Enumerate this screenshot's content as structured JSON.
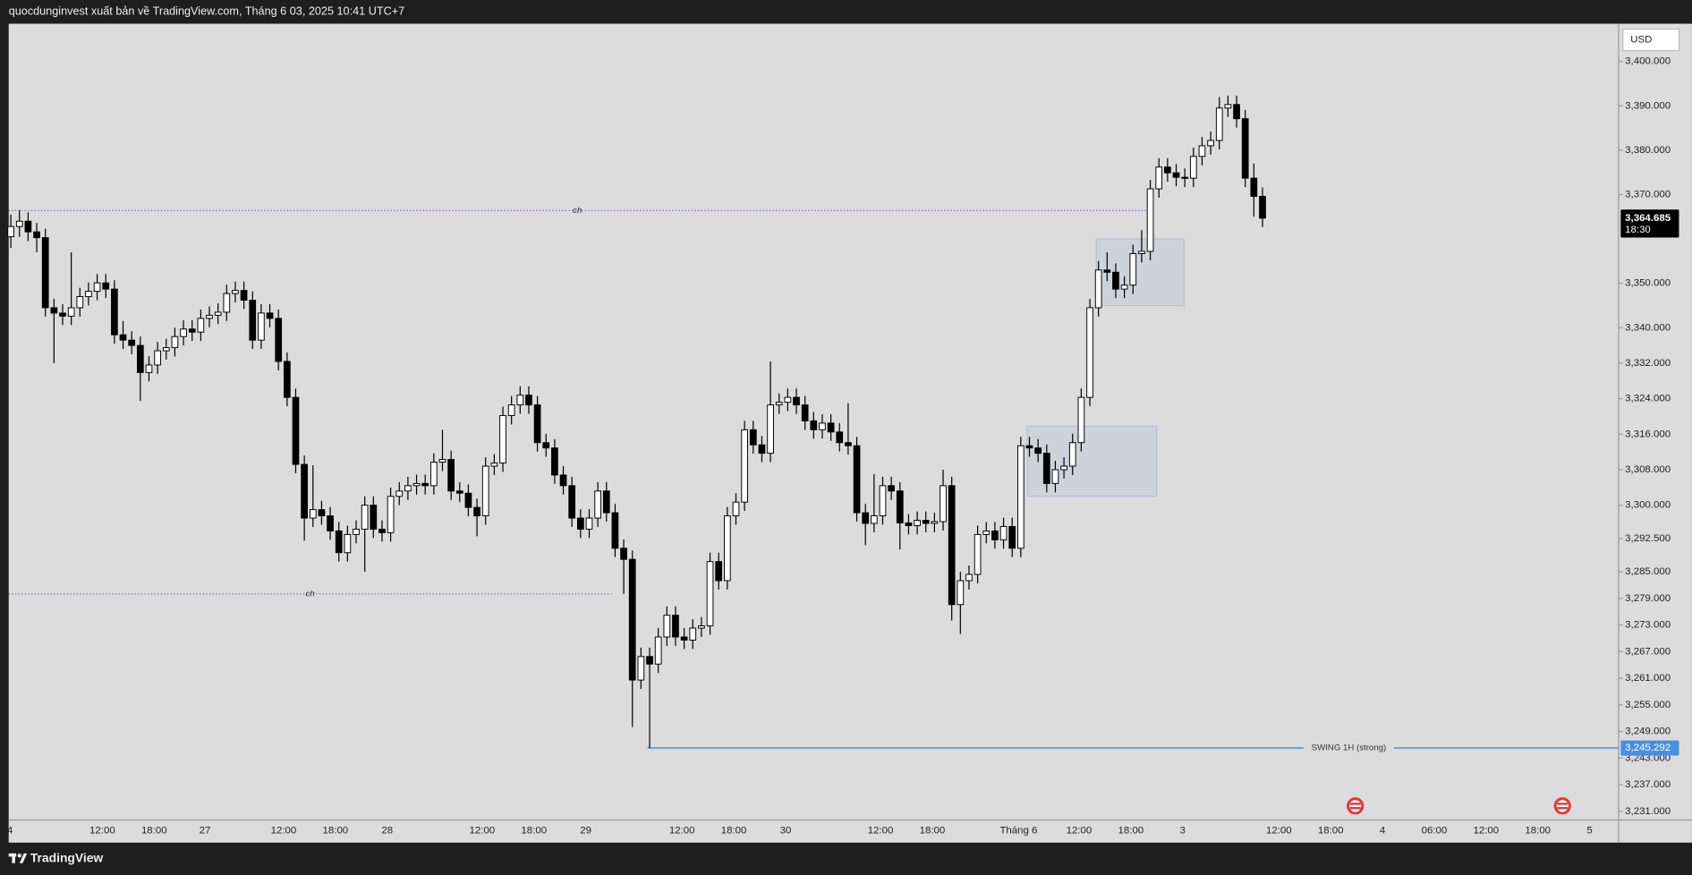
{
  "header": {
    "title": "quocdunginvest xuất bản về TradingView.com, Tháng 6 03, 2025 10:41 UTC+7"
  },
  "footer": {
    "brand": "TradingView"
  },
  "chart_data": {
    "type": "candlestick",
    "currency": "USD",
    "colors": {
      "up": "#ffffff",
      "down": "#000000",
      "outline": "#000000"
    },
    "open": [
      3360.5,
      3362.8,
      3364,
      3361.6,
      3360.3,
      3344.5,
      3343.3,
      3342.6,
      3344.5,
      3347,
      3348.2,
      3350.1,
      3348.7,
      3338.4,
      3337.2,
      3336,
      3329.9,
      3331.6,
      3334.8,
      3335.5,
      3338,
      3339.7,
      3339,
      3342.1,
      3342.8,
      3343.5,
      3347.7,
      3348.4,
      3346.2,
      3337.2,
      3343.3,
      3342.1,
      3332.4,
      3324.3,
      3309.2,
      3297.1,
      3299,
      3297.6,
      3294.2,
      3289.3,
      3293.4,
      3294.6,
      3300,
      3294.6,
      3293.8,
      3302,
      3303.2,
      3304.4,
      3304.9,
      3304.4,
      3309.7,
      3310.3,
      3303.2,
      3302.7,
      3299.5,
      3297.6,
      3308.8,
      3309.5,
      3320.2,
      3322.6,
      3324.8,
      3322.6,
      3314.1,
      3312.9,
      3306.8,
      3304.4,
      3297.1,
      3294.6,
      3297.1,
      3303.2,
      3298.3,
      3290.3,
      3287.8,
      3260.6,
      3265.9,
      3264.2,
      3270.3,
      3275.2,
      3270.3,
      3269.6,
      3272.3,
      3272.8,
      3287.3,
      3283,
      3297.6,
      3300.7,
      3317,
      3313.6,
      3311.7,
      3322.6,
      3323.2,
      3324.3,
      3322.6,
      3319,
      3317,
      3318.5,
      3316.5,
      3314.1,
      3313.4,
      3298.3,
      3295.9,
      3297.6,
      3304.4,
      3303.2,
      3296,
      3295.4,
      3296.6,
      3295.9,
      3296.3,
      3304.4,
      3277.6,
      3283,
      3284.4,
      3293.4,
      3294.2,
      3292.2,
      3295.2,
      3290.3,
      3313.4,
      3312.9,
      3311.7,
      3304.9,
      3308,
      3308.8,
      3314.1,
      3324.3,
      3344.5,
      3353,
      3352.5,
      3348.7,
      3349.6,
      3356.7,
      3357.2,
      3371.3,
      3376.2,
      3374.9,
      3373.9,
      3373.7,
      3378.6,
      3381,
      3382.2,
      3389.5,
      3390.3,
      3387.1,
      3373.7,
      3369.6
    ],
    "high": [
      3365.5,
      3366.5,
      3366,
      3363.6,
      3362.3,
      3346.5,
      3345.3,
      3357,
      3349,
      3350.2,
      3352.1,
      3352.1,
      3350.7,
      3341.5,
      3339.2,
      3338,
      3333.6,
      3336.8,
      3337.5,
      3340,
      3341.7,
      3341.7,
      3344.1,
      3344.8,
      3345.5,
      3349.7,
      3350.4,
      3350.4,
      3348.2,
      3345.3,
      3345.3,
      3344.1,
      3334.4,
      3326.3,
      3311.2,
      3309,
      3301,
      3299.6,
      3296.2,
      3295.4,
      3296.6,
      3302,
      3302,
      3296.6,
      3304,
      3305.2,
      3306.4,
      3306.9,
      3306.9,
      3311.7,
      3317,
      3312.3,
      3305.2,
      3304.7,
      3301.5,
      3310.8,
      3311.5,
      3322.2,
      3324.6,
      3326.8,
      3326.8,
      3324.6,
      3316.1,
      3314.9,
      3308.8,
      3306.4,
      3299.1,
      3299.1,
      3305.2,
      3305.2,
      3300.3,
      3292.3,
      3289.8,
      3267.9,
      3267.9,
      3272.3,
      3277.2,
      3277.2,
      3272.3,
      3274.3,
      3274.8,
      3289.3,
      3289.3,
      3299.6,
      3302.7,
      3319,
      3319,
      3315.6,
      3332.4,
      3325.2,
      3326.3,
      3326.3,
      3324.6,
      3321,
      3320.5,
      3320.5,
      3318.5,
      3323,
      3315.4,
      3300.3,
      3307,
      3306.4,
      3306.4,
      3305.2,
      3298,
      3298.6,
      3298.6,
      3298.3,
      3308,
      3306.4,
      3285,
      3286.4,
      3295.4,
      3296.2,
      3296.2,
      3297.2,
      3297.2,
      3315.4,
      3315.4,
      3314.9,
      3313.7,
      3310,
      3310.8,
      3316.1,
      3326.3,
      3346.5,
      3355,
      3357,
      3354.5,
      3351.6,
      3358.7,
      3362,
      3373.3,
      3378.2,
      3378.2,
      3376.9,
      3375.9,
      3380.6,
      3383,
      3384.2,
      3392,
      3392.3,
      3392.3,
      3389.1,
      3377,
      3371.6
    ],
    "low": [
      3358,
      3360.5,
      3359.5,
      3357,
      3342.5,
      3332,
      3340.6,
      3340.6,
      3342.5,
      3345,
      3346.2,
      3346.7,
      3336.4,
      3335.2,
      3334,
      3323.5,
      3327.9,
      3329.6,
      3332.8,
      3333.5,
      3336,
      3337,
      3337,
      3340.1,
      3340.8,
      3341.5,
      3345.7,
      3344.2,
      3335.2,
      3335.2,
      3340.1,
      3330.4,
      3322.3,
      3307.2,
      3292,
      3295.1,
      3295.6,
      3292.2,
      3287.3,
      3287.3,
      3291.4,
      3285,
      3292.6,
      3291.8,
      3291.8,
      3300,
      3301.2,
      3302.4,
      3302.4,
      3302.4,
      3307.7,
      3301.2,
      3300.7,
      3297.5,
      3293,
      3295.6,
      3306.8,
      3307.5,
      3318.2,
      3320.6,
      3320.6,
      3312.1,
      3310.9,
      3304.8,
      3302.4,
      3295.1,
      3292.6,
      3292.6,
      3295.1,
      3296.3,
      3288.3,
      3280,
      3250,
      3258.6,
      3245.3,
      3262.2,
      3268.3,
      3268.3,
      3267.6,
      3267.6,
      3270.3,
      3270.8,
      3281,
      3281,
      3295.6,
      3298.7,
      3311.6,
      3309.7,
      3309.7,
      3320.6,
      3321.2,
      3320.6,
      3317,
      3315,
      3315,
      3314.5,
      3312.1,
      3311.4,
      3296.3,
      3291,
      3293.9,
      3295.6,
      3301.2,
      3290,
      3293.4,
      3293.4,
      3293.9,
      3293.9,
      3294.3,
      3274,
      3271,
      3281,
      3282.4,
      3291.4,
      3290.2,
      3290.2,
      3288.3,
      3288.3,
      3310.9,
      3309.7,
      3302.9,
      3302.9,
      3306,
      3306.8,
      3312.1,
      3322.3,
      3342.5,
      3350.5,
      3346.7,
      3346.7,
      3347.6,
      3354.7,
      3355.2,
      3369.3,
      3372.9,
      3371.9,
      3371.7,
      3371.7,
      3376.6,
      3379,
      3380.2,
      3387.5,
      3385.1,
      3371.7,
      3365,
      3362.7
    ],
    "close": [
      3362.8,
      3364,
      3361.6,
      3360.3,
      3344.5,
      3343.3,
      3342.6,
      3344.5,
      3347,
      3348.2,
      3350.1,
      3348.7,
      3338.4,
      3337.2,
      3336,
      3329.9,
      3331.6,
      3334.8,
      3335.5,
      3338,
      3339.7,
      3339,
      3342.1,
      3342.8,
      3343.5,
      3347.7,
      3348.4,
      3346.2,
      3337.2,
      3343.3,
      3342.1,
      3332.4,
      3324.3,
      3309.2,
      3297.1,
      3299,
      3297.6,
      3294.2,
      3289.3,
      3293.4,
      3294.6,
      3300,
      3294.6,
      3293.8,
      3302,
      3303.2,
      3304.4,
      3304.9,
      3304.4,
      3309.7,
      3310.3,
      3303.2,
      3302.7,
      3299.5,
      3297.6,
      3308.8,
      3309.5,
      3320.2,
      3322.6,
      3324.8,
      3322.6,
      3314.1,
      3312.9,
      3306.8,
      3304.4,
      3297.1,
      3294.6,
      3297.1,
      3303.2,
      3298.3,
      3290.3,
      3287.8,
      3260.6,
      3265.9,
      3264.2,
      3270.3,
      3275.2,
      3270.3,
      3269.6,
      3272.3,
      3272.8,
      3287.3,
      3283,
      3297.6,
      3300.7,
      3317,
      3313.6,
      3311.7,
      3322.6,
      3323.2,
      3324.3,
      3322.6,
      3319,
      3317,
      3318.5,
      3316.5,
      3314.1,
      3313.4,
      3298.3,
      3295.9,
      3297.6,
      3304.4,
      3303.2,
      3296,
      3295.4,
      3296.6,
      3295.9,
      3296.3,
      3304.4,
      3277.6,
      3283,
      3284.4,
      3293.4,
      3294.2,
      3292.2,
      3295.2,
      3290.3,
      3313.4,
      3312.9,
      3311.7,
      3304.9,
      3308,
      3308.8,
      3314.1,
      3324.3,
      3344.5,
      3353,
      3352.5,
      3348.7,
      3349.6,
      3356.7,
      3357.2,
      3371.3,
      3376.2,
      3374.9,
      3373.9,
      3373.7,
      3378.6,
      3381,
      3382.2,
      3389.5,
      3390.3,
      3387.1,
      3373.7,
      3369.6,
      3364.685
    ],
    "xlim": [
      -0.25,
      186.25
    ],
    "ylim": [
      3224.2,
      3408.5
    ],
    "xticks": [
      {
        "value": -0.1,
        "label": "4"
      },
      {
        "value": 10.6,
        "label": "12:00"
      },
      {
        "value": 16.6,
        "label": "18:00"
      },
      {
        "value": 22.5,
        "label": "27"
      },
      {
        "value": 31.6,
        "label": "12:00"
      },
      {
        "value": 37.6,
        "label": "18:00"
      },
      {
        "value": 43.6,
        "label": "28"
      },
      {
        "value": 54.6,
        "label": "12:00"
      },
      {
        "value": 60.6,
        "label": "18:00"
      },
      {
        "value": 66.6,
        "label": "29"
      },
      {
        "value": 77.75,
        "label": "12:00"
      },
      {
        "value": 83.75,
        "label": "18:00"
      },
      {
        "value": 89.75,
        "label": "30"
      },
      {
        "value": 100.75,
        "label": "12:00"
      },
      {
        "value": 106.75,
        "label": "18:00"
      },
      {
        "value": 116.75,
        "label": "Tháng 6"
      },
      {
        "value": 123.75,
        "label": "12:00"
      },
      {
        "value": 129.75,
        "label": "18:00"
      },
      {
        "value": 135.75,
        "label": "3"
      },
      {
        "value": 146.9,
        "label": "12:00"
      },
      {
        "value": 152.9,
        "label": "18:00"
      },
      {
        "value": 158.9,
        "label": "4"
      },
      {
        "value": 164.9,
        "label": "06:00"
      },
      {
        "value": 170.9,
        "label": "12:00"
      },
      {
        "value": 176.9,
        "label": "18:00"
      },
      {
        "value": 182.9,
        "label": "5"
      }
    ],
    "yticks": [
      {
        "value": 3400,
        "label": "3,400.000"
      },
      {
        "value": 3390,
        "label": "3,390.000"
      },
      {
        "value": 3380,
        "label": "3,380.000"
      },
      {
        "value": 3370,
        "label": "3,370.000"
      },
      {
        "value": 3350,
        "label": "3,350.000"
      },
      {
        "value": 3340,
        "label": "3,340.000"
      },
      {
        "value": 3332,
        "label": "3,332.000"
      },
      {
        "value": 3324,
        "label": "3,324.000"
      },
      {
        "value": 3316,
        "label": "3,316.000"
      },
      {
        "value": 3308,
        "label": "3,308.000"
      },
      {
        "value": 3300,
        "label": "3,300.000"
      },
      {
        "value": 3292.5,
        "label": "3,292.500"
      },
      {
        "value": 3285,
        "label": "3,285.000"
      },
      {
        "value": 3279,
        "label": "3,279.000"
      },
      {
        "value": 3273,
        "label": "3,273.000"
      },
      {
        "value": 3267,
        "label": "3,267.000"
      },
      {
        "value": 3261,
        "label": "3,261.000"
      },
      {
        "value": 3255,
        "label": "3,255.000"
      },
      {
        "value": 3249,
        "label": "3,249.000"
      },
      {
        "value": 3243,
        "label": "3,243.000"
      },
      {
        "value": 3237,
        "label": "3,237.000"
      },
      {
        "value": 3231,
        "label": "3,231.000"
      }
    ],
    "last_price": {
      "value": 3364.685,
      "label": "3,364.685",
      "countdown": "18:30"
    },
    "levels": [
      {
        "label": "ch",
        "value": 3366.4,
        "x": [
          -0.25,
          131.5
        ],
        "color": "#7e57c2"
      },
      {
        "label": "ch",
        "value": 3280,
        "x": [
          -0.25,
          69.6
        ],
        "color": "#7e57c2"
      }
    ],
    "swing": {
      "label": "SWING 1H (strong)",
      "value": 3245.292,
      "price_label": "3,245.292",
      "x": [
        73.75,
        186.25
      ],
      "color": "#4a8fe6"
    },
    "zones": [
      {
        "x": [
          125.75,
          135.9
        ],
        "y": [
          3345,
          3360
        ]
      },
      {
        "x": [
          117.75,
          132.75
        ],
        "y": [
          3302,
          3317.8
        ]
      }
    ]
  }
}
